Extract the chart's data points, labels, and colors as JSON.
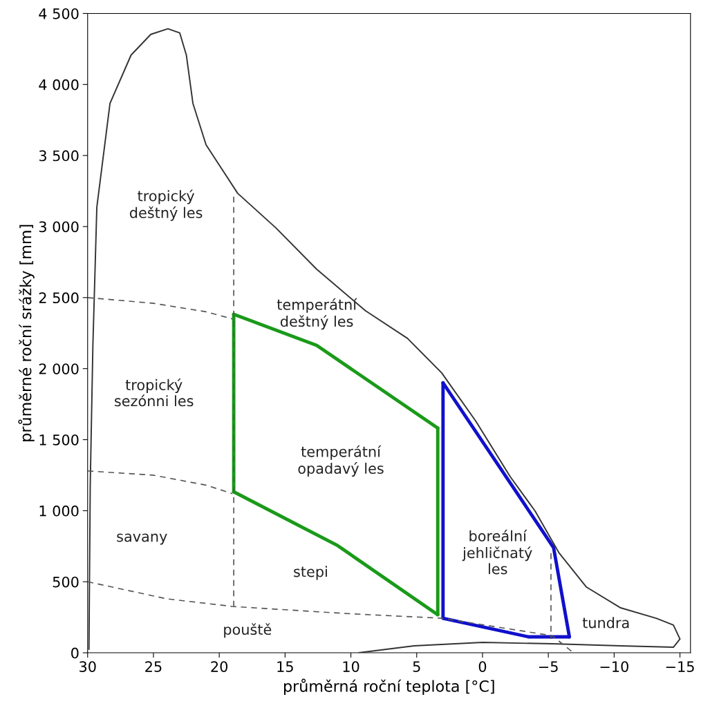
{
  "chart_data": {
    "type": "line",
    "xlabel": "průměrná roční teplota [°C]",
    "ylabel": "průměrné roční srážky [mm]",
    "xlim": [
      30,
      -15.8
    ],
    "ylim": [
      0,
      4500
    ],
    "xticks": [
      30,
      25,
      20,
      15,
      10,
      5,
      0,
      {
        "value": -5,
        "label": "−5"
      },
      {
        "value": -10,
        "label": "−10"
      },
      {
        "value": -15,
        "label": "−15"
      }
    ],
    "yticks": [
      0,
      500,
      {
        "value": 1000,
        "label": "1 000"
      },
      {
        "value": 1500,
        "label": "1 500"
      },
      {
        "value": 2000,
        "label": "2 000"
      },
      {
        "value": 2500,
        "label": "2 500"
      },
      {
        "value": 3000,
        "label": "3 000"
      },
      {
        "value": 3500,
        "label": "3 500"
      },
      {
        "value": 4000,
        "label": "4 000"
      },
      {
        "value": 4500,
        "label": "4 500"
      }
    ],
    "grid": false,
    "legend": false,
    "series": [
      {
        "color": "#333333",
        "line_style": "solid",
        "x": [
          29.9,
          29.8,
          29.6,
          29.3,
          28.3,
          26.7,
          25.2,
          23.9,
          23.0,
          22.5,
          22.0,
          21.0,
          18.6,
          15.7,
          12.6,
          8.9,
          5.7,
          3.1,
          0.5,
          -2.1,
          -4.0,
          -5.8,
          -7.9,
          -10.5,
          -13.2,
          -14.5,
          -15.0,
          -14.5,
          -10.5,
          -5.3,
          0,
          5.2,
          9.4
        ],
        "values": [
          25,
          1190,
          2165,
          3137,
          3867,
          4207,
          4353,
          4392,
          4363,
          4207,
          3867,
          3575,
          3234,
          2991,
          2700,
          2408,
          2213,
          1970,
          1629,
          1240,
          997,
          705,
          462,
          316,
          243,
          195,
          97,
          39,
          49,
          63,
          73,
          49,
          0
        ]
      },
      {
        "color": "#555555",
        "line_style": "dashed",
        "x": [
          30,
          25,
          21,
          19
        ],
        "values": [
          2500,
          2460,
          2400,
          2350
        ]
      },
      {
        "color": "#555555",
        "line_style": "dashed",
        "x": [
          30,
          25,
          21,
          19
        ],
        "values": [
          1280,
          1250,
          1180,
          1120
        ]
      },
      {
        "color": "#555555",
        "line_style": "dashed",
        "x": [
          30,
          24,
          19,
          10.5,
          3.1,
          -5.3,
          -6.9
        ],
        "values": [
          500,
          380,
          326,
          277,
          243,
          120,
          0
        ]
      },
      {
        "color": "#555555",
        "line_style": "dashed",
        "x": [
          18.9,
          18.9
        ],
        "values": [
          3210,
          316
        ]
      },
      {
        "color": "#555555",
        "line_style": "dashed",
        "x": [
          -5.2,
          -5.2
        ],
        "values": [
          700,
          97
        ]
      },
      {
        "color": "#1a9a1a",
        "line_style": "solid",
        "x": [
          18.9,
          18.9
        ],
        "values": [
          2383,
          1133
        ]
      },
      {
        "color": "#1a9a1a",
        "line_style": "solid",
        "x": [
          18.9,
          11.0,
          3.4
        ],
        "values": [
          1133,
          754,
          268
        ]
      },
      {
        "color": "#1a9a1a",
        "line_style": "solid",
        "x": [
          3.4,
          3.4
        ],
        "values": [
          268,
          1581
        ]
      },
      {
        "color": "#1a9a1a",
        "line_style": "solid",
        "x": [
          3.4,
          12.6,
          18.9
        ],
        "values": [
          1581,
          2164,
          2383
        ]
      },
      {
        "color": "#1010cc",
        "line_style": "solid",
        "x": [
          3.0,
          3.0
        ],
        "values": [
          1900,
          243
        ]
      },
      {
        "color": "#1010cc",
        "line_style": "solid",
        "x": [
          3.0,
          -3.5,
          -6.6
        ],
        "values": [
          243,
          112,
          112
        ]
      },
      {
        "color": "#1010cc",
        "line_style": "solid",
        "x": [
          -6.6,
          -5.4,
          3.0
        ],
        "values": [
          112,
          740,
          1900
        ]
      }
    ],
    "annotations": [
      "tropický\ndeštný les",
      "temperátní\ndeštný les",
      "tropický\nsezónni les",
      "temperátní\nopadavý les",
      "savany",
      "stepi",
      "pouště",
      "boreální\njehličnatý\nles",
      "tundra"
    ]
  }
}
